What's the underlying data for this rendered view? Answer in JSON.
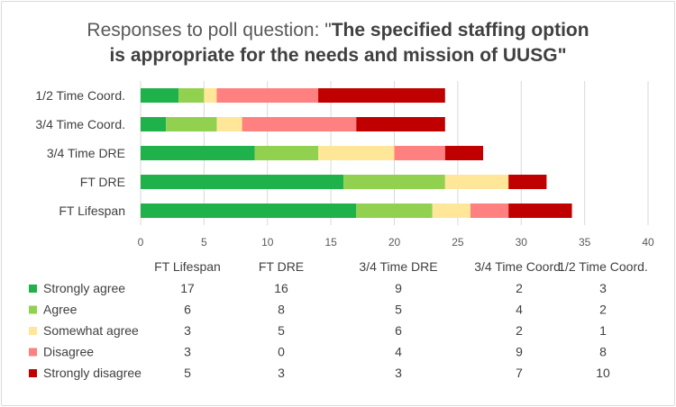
{
  "chart_data": {
    "type": "bar",
    "orientation": "horizontal",
    "stacked": true,
    "title_plain_1": "Responses to poll question: \"",
    "title_bold_1": "The specified staffing option",
    "title_bold_2": "is appropriate for the needs and mission of UUSG",
    "title_plain_2": "\"",
    "categories": [
      "FT Lifespan",
      "FT DRE",
      "3/4 Time DRE",
      "3/4 Time Coord.",
      "1/2 Time Coord."
    ],
    "series": [
      {
        "name": "Strongly agree",
        "color": "#1fb14a",
        "values": [
          17,
          16,
          9,
          2,
          3
        ]
      },
      {
        "name": "Agree",
        "color": "#92d050",
        "values": [
          6,
          8,
          5,
          4,
          2
        ]
      },
      {
        "name": "Somewhat agree",
        "color": "#ffe699",
        "values": [
          3,
          5,
          6,
          2,
          1
        ]
      },
      {
        "name": "Disagree",
        "color": "#ff8080",
        "values": [
          3,
          0,
          4,
          9,
          8
        ]
      },
      {
        "name": "Strongly disagree",
        "color": "#c00000",
        "values": [
          5,
          3,
          3,
          7,
          10
        ]
      }
    ],
    "xlim": [
      0,
      40
    ],
    "xticks": [
      "0",
      "5",
      "10",
      "15",
      "20",
      "25",
      "30",
      "35",
      "40"
    ],
    "grid": true,
    "legend": "data-table-below"
  }
}
